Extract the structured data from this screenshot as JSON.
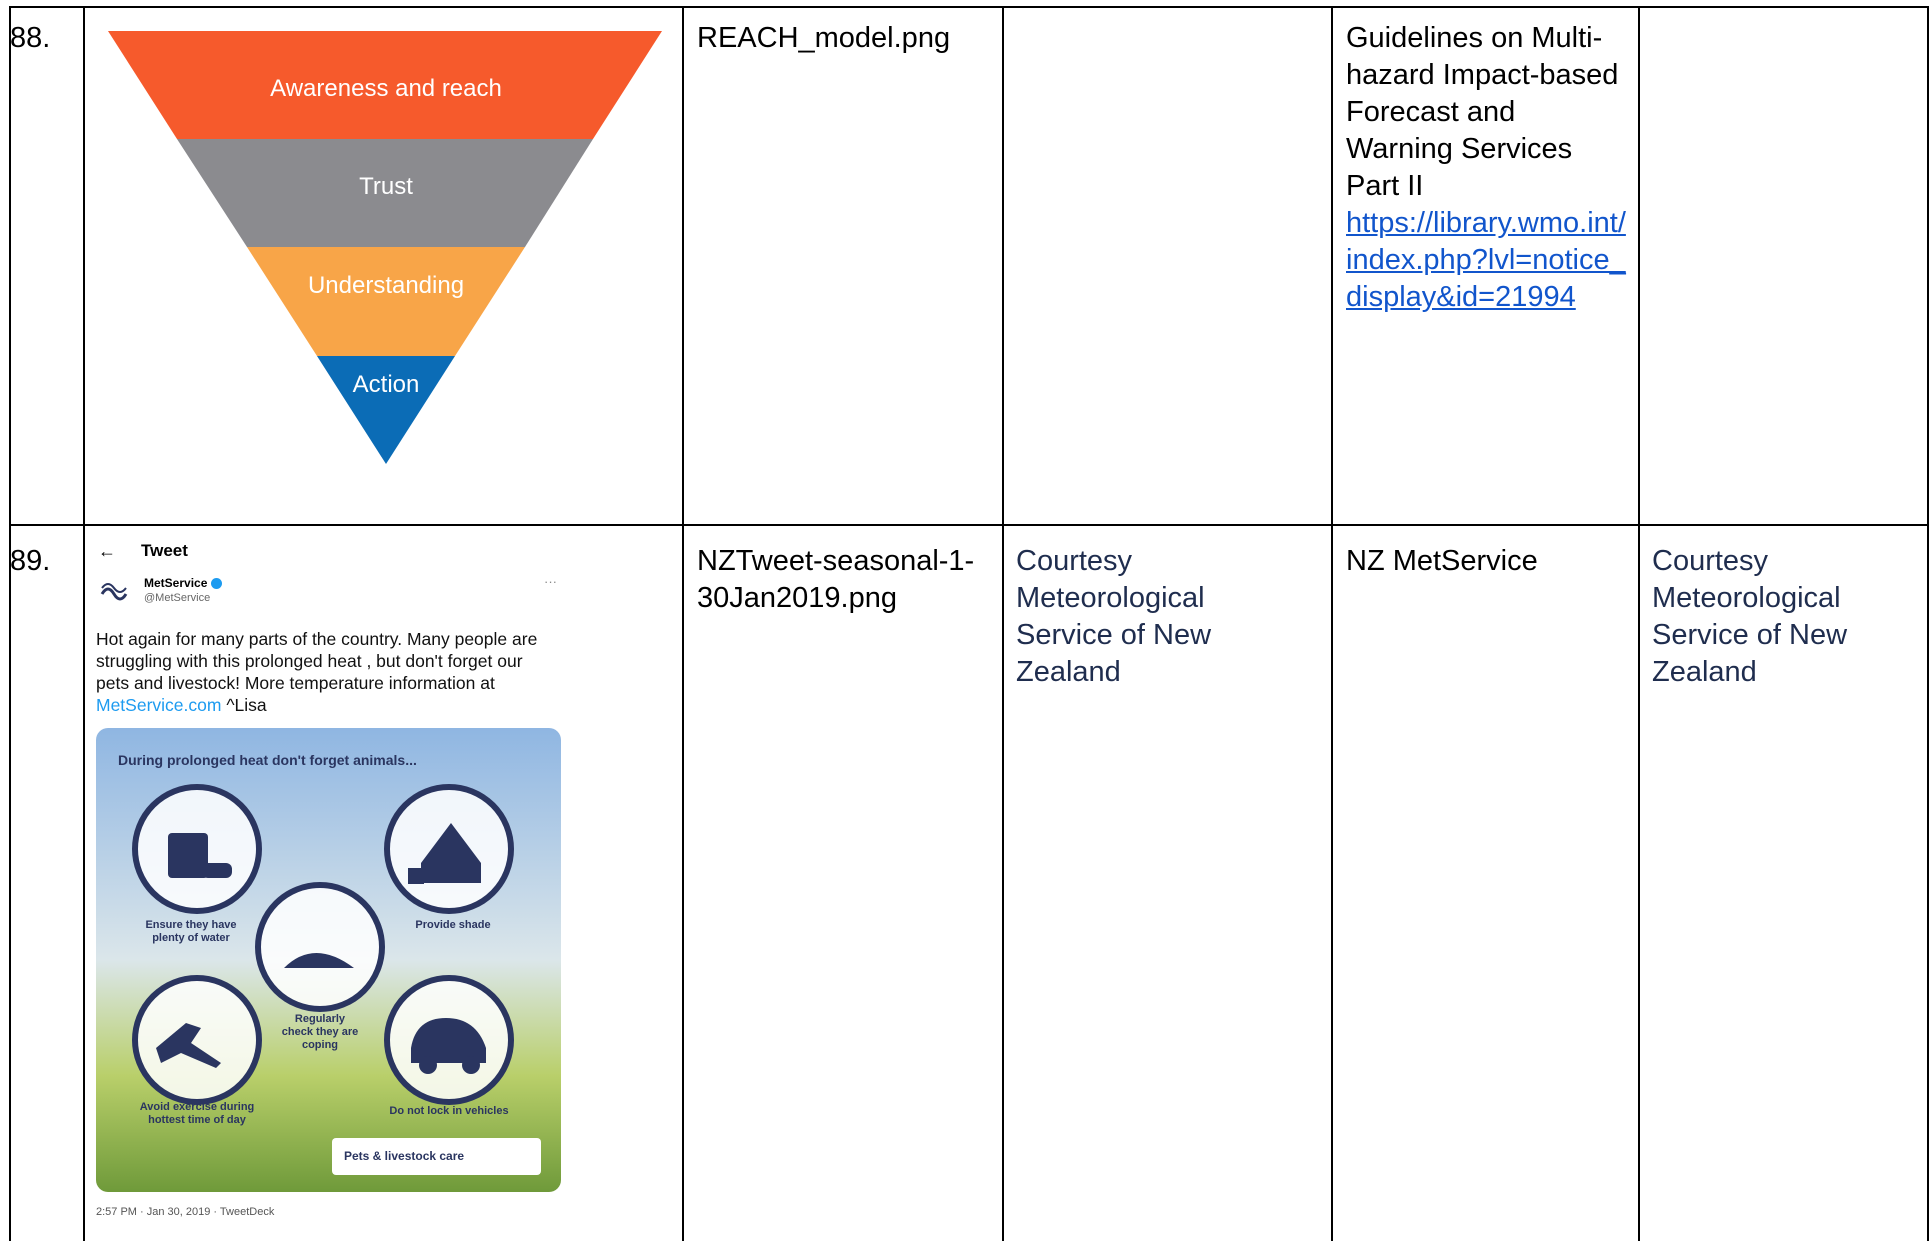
{
  "table": {
    "rows": [
      {
        "number": "88.",
        "image": {
          "levels": [
            "Awareness and reach",
            "Trust",
            "Understanding",
            "Action"
          ]
        },
        "filename": "REACH_model.png",
        "source": {
          "title": "Guidelines on Multi-hazard Impact-based Forecast and Warning Services Part II",
          "link": "https://library.wmo.int/index.php?lvl=notice_display&id=21994"
        }
      },
      {
        "number": "89.",
        "image": {
          "header": "Tweet",
          "account": "MetService",
          "handle": "@MetService",
          "text": "Hot again for many parts of the country. Many people are struggling with this prolonged heat , but don't forget our pets and livestock! More temperature information at",
          "link": "MetService.com",
          "signature": "^Lisa",
          "card_title": "During prolonged heat don't forget animals...",
          "tips": [
            "Ensure they have plenty of water",
            "Provide shade",
            "Regularly check they are coping",
            "Avoid exercise during hottest time of day",
            "Do not lock in vehicles"
          ],
          "badge": "Pets & livestock care",
          "timestamp": "2:57 PM · Jan 30, 2019 · TweetDeck"
        },
        "filename": "NZTweet-seasonal-1-30Jan2019.png",
        "credit": "Courtesy Meteorological Service of New Zealand",
        "source": {
          "title": "NZ MetService"
        },
        "copyright": "Courtesy Meteorological Service of New Zealand"
      }
    ]
  }
}
